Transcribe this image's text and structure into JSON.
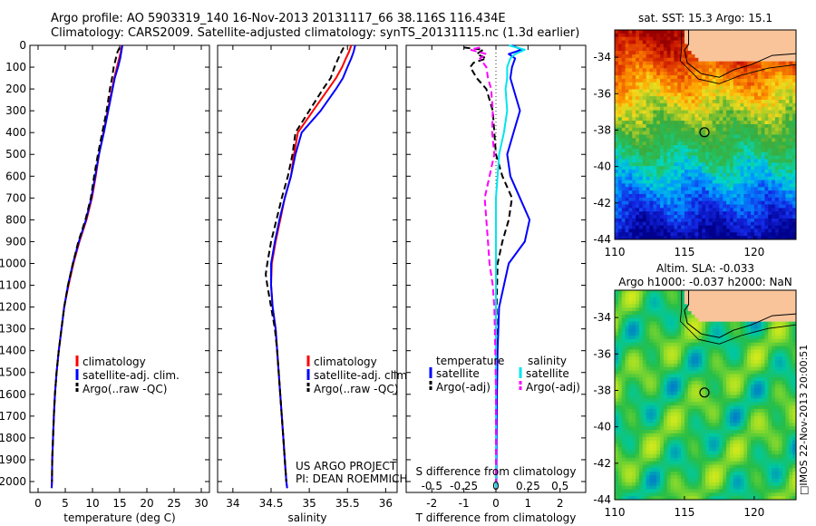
{
  "header": {
    "line1": "Argo profile: AO 5903319_140 16-Nov-2013 20131117_66 38.116S 116.434E",
    "line2": "Climatology: CARS2009. Satellite-adjusted climatology: synTS_20131115.nc (1.3d earlier)"
  },
  "credit": "□IMOS 22-Nov-2013 20:00:51",
  "colors": {
    "climatology": "#ff0000",
    "satellite": "#0000ff",
    "argo": "#000000",
    "salinity_sat": "#00e5ee",
    "salinity_argo": "#ff00ff",
    "land": "#f9c49a",
    "coast": "#000000"
  },
  "chart_data": [
    {
      "type": "line",
      "xlabel": "temperature (deg C)",
      "ylabel": "",
      "xlim": [
        -1.5,
        31.5
      ],
      "ylim": [
        2050,
        0
      ],
      "xticks": [
        0,
        5,
        10,
        15,
        20,
        25,
        30
      ],
      "yticks": [
        0,
        100,
        200,
        300,
        400,
        500,
        600,
        700,
        800,
        900,
        1000,
        1100,
        1200,
        1300,
        1400,
        1500,
        1600,
        1700,
        1800,
        1900,
        2000
      ],
      "legend": [
        "climatology",
        "satellite-adj. clim.",
        "Argo(..raw -QC)"
      ],
      "series": [
        {
          "name": "climatology",
          "style": "solid",
          "depth": [
            0,
            30,
            60,
            100,
            150,
            200,
            300,
            400,
            500,
            600,
            700,
            800,
            900,
            1000,
            1100,
            1200,
            1300,
            1400,
            1500,
            1600,
            1700,
            1800,
            1900,
            2000,
            2030
          ],
          "values": [
            15.4,
            15.2,
            14.9,
            14.5,
            14.0,
            13.6,
            12.8,
            12.0,
            11.2,
            10.6,
            9.9,
            8.9,
            7.6,
            6.5,
            5.6,
            4.8,
            4.3,
            3.8,
            3.4,
            3.1,
            2.9,
            2.75,
            2.6,
            2.55,
            2.5
          ]
        },
        {
          "name": "satellite-adj. clim.",
          "style": "solid",
          "depth": [
            0,
            30,
            60,
            100,
            150,
            200,
            300,
            400,
            500,
            600,
            700,
            800,
            900,
            1000,
            1100,
            1200,
            1300,
            1400,
            1500,
            1600,
            1700,
            1800,
            1900,
            2000,
            2030
          ],
          "values": [
            15.5,
            15.3,
            15.1,
            14.7,
            14.1,
            13.7,
            12.9,
            12.1,
            11.2,
            10.5,
            9.8,
            8.8,
            7.5,
            6.4,
            5.5,
            4.8,
            4.3,
            3.8,
            3.4,
            3.1,
            2.9,
            2.75,
            2.6,
            2.55,
            2.5
          ]
        },
        {
          "name": "Argo(..raw -QC)",
          "style": "dashed",
          "depth": [
            10,
            30,
            60,
            100,
            150,
            200,
            300,
            400,
            500,
            600,
            700,
            800,
            900,
            1000,
            1100,
            1200,
            1300,
            1400,
            1500,
            1600,
            1700,
            1800,
            1900,
            2000
          ],
          "values": [
            15.0,
            14.6,
            14.3,
            13.9,
            13.6,
            13.2,
            12.6,
            11.8,
            11.0,
            10.3,
            9.7,
            8.7,
            7.4,
            6.4,
            5.5,
            4.8,
            4.3,
            3.8,
            3.4,
            3.1,
            2.9,
            2.75,
            2.6,
            2.55
          ]
        }
      ]
    },
    {
      "type": "line",
      "xlabel": "salinity",
      "ylabel": "",
      "xlim": [
        33.8,
        36.15
      ],
      "ylim": [
        2050,
        0
      ],
      "xticks": [
        34,
        34.5,
        35,
        35.5,
        36
      ],
      "legend": [
        "climatology",
        "satellite-adj. clim.",
        "Argo(..raw -QC)"
      ],
      "annotation": [
        "US ARGO PROJECT",
        "PI: DEAN ROEMMICH"
      ],
      "series": [
        {
          "name": "climatology",
          "style": "solid",
          "depth": [
            0,
            30,
            60,
            100,
            150,
            200,
            300,
            400,
            500,
            600,
            700,
            800,
            900,
            1000,
            1100,
            1200,
            1300,
            1400,
            1500,
            1600,
            1700,
            1800,
            1900,
            2000,
            2030
          ],
          "values": [
            35.55,
            35.52,
            35.48,
            35.43,
            35.35,
            35.25,
            35.05,
            34.85,
            34.8,
            34.76,
            34.68,
            34.62,
            34.56,
            34.51,
            34.5,
            34.52,
            34.56,
            34.58,
            34.6,
            34.62,
            34.64,
            34.66,
            34.68,
            34.7,
            34.71
          ]
        },
        {
          "name": "satellite-adj. clim.",
          "style": "solid",
          "depth": [
            0,
            30,
            60,
            100,
            150,
            200,
            300,
            400,
            500,
            600,
            700,
            800,
            900,
            1000,
            1100,
            1200,
            1300,
            1400,
            1500,
            1600,
            1700,
            1800,
            1900,
            2000,
            2030
          ],
          "values": [
            35.6,
            35.58,
            35.55,
            35.5,
            35.44,
            35.35,
            35.15,
            34.9,
            34.82,
            34.76,
            34.68,
            34.61,
            34.55,
            34.5,
            34.5,
            34.52,
            34.56,
            34.58,
            34.6,
            34.62,
            34.64,
            34.66,
            34.68,
            34.7,
            34.71
          ]
        },
        {
          "name": "Argo(..raw -QC)",
          "style": "dashed",
          "depth": [
            10,
            30,
            60,
            100,
            150,
            200,
            300,
            400,
            500,
            600,
            700,
            800,
            900,
            1000,
            1050,
            1100,
            1200,
            1300,
            1400,
            1500,
            1600,
            1700,
            1800,
            1900,
            2000
          ],
          "values": [
            35.45,
            35.42,
            35.38,
            35.33,
            35.28,
            35.18,
            35.0,
            34.82,
            34.78,
            34.72,
            34.64,
            34.57,
            34.5,
            34.45,
            34.43,
            34.45,
            34.5,
            34.55,
            34.58,
            34.6,
            34.62,
            34.64,
            34.66,
            34.68,
            34.7
          ]
        }
      ]
    },
    {
      "type": "line",
      "xlabel": "T difference from climatology",
      "xlabel_top": "S difference from climatology",
      "xlim": [
        -2.8,
        2.8
      ],
      "ylim": [
        2050,
        0
      ],
      "xticks": [
        -2,
        -1,
        0,
        1,
        2
      ],
      "xtick_labels": [
        "-2",
        "-1",
        "0",
        "1",
        "2"
      ],
      "xticks_S": [
        -2,
        -1,
        0,
        1,
        2
      ],
      "xtick_labels_S": [
        "-0.5",
        "-0.25",
        "0",
        "0.25",
        "0.5"
      ],
      "legend_headers": [
        "temperature",
        "salinity"
      ],
      "legend": [
        "satellite",
        "Argo(-adj)",
        "satellite",
        "Argo(-adj)"
      ],
      "series": [
        {
          "name": "satellite",
          "group": "temperature",
          "style": "solid",
          "depth": [
            0,
            20,
            40,
            60,
            80,
            100,
            150,
            200,
            300,
            400,
            500,
            600,
            700,
            800,
            900,
            1000,
            1200,
            1400,
            1600,
            1800,
            2000,
            2030
          ],
          "values": [
            0.5,
            0.8,
            0.4,
            0.6,
            0.55,
            0.5,
            0.45,
            0.55,
            0.75,
            0.55,
            0.35,
            0.45,
            0.75,
            1.05,
            0.9,
            0.4,
            0.1,
            0.05,
            0.03,
            0.02,
            0.01,
            0.0
          ]
        },
        {
          "name": "Argo(-adj)",
          "group": "temperature",
          "style": "dashed",
          "depth": [
            10,
            20,
            40,
            60,
            80,
            100,
            150,
            200,
            300,
            400,
            500,
            600,
            700,
            800,
            900,
            1000,
            1200,
            1400,
            1600,
            1800,
            2000
          ],
          "values": [
            -1.0,
            -0.4,
            -0.6,
            -0.3,
            -0.7,
            -0.8,
            -0.6,
            -0.3,
            -0.1,
            -0.05,
            0.0,
            0.2,
            0.5,
            0.4,
            0.2,
            0.05,
            0.02,
            0.01,
            0.0,
            0.0,
            0.0
          ]
        },
        {
          "name": "satellite",
          "group": "salinity",
          "style": "solid",
          "depth": [
            0,
            20,
            40,
            60,
            80,
            100,
            150,
            200,
            300,
            400,
            500,
            600,
            700,
            800,
            900,
            1000,
            1200,
            1400,
            1600,
            1800,
            2000,
            2030
          ],
          "values": [
            0.4,
            0.9,
            0.6,
            0.45,
            0.4,
            0.35,
            0.35,
            0.3,
            0.35,
            0.25,
            0.1,
            0.05,
            0.0,
            0.0,
            0.0,
            0.0,
            0.0,
            0.0,
            0.0,
            0.0,
            0.0,
            0.0
          ]
        },
        {
          "name": "Argo(-adj)",
          "group": "salinity",
          "style": "dashed",
          "depth": [
            10,
            20,
            40,
            60,
            80,
            100,
            150,
            200,
            300,
            400,
            500,
            600,
            700,
            800,
            900,
            1000,
            1100,
            1200,
            1400,
            1600,
            1800,
            2000
          ],
          "values": [
            -0.5,
            -0.8,
            -0.3,
            -0.5,
            -0.4,
            -0.3,
            -0.25,
            -0.15,
            -0.1,
            -0.12,
            -0.05,
            -0.2,
            -0.35,
            -0.3,
            -0.25,
            -0.2,
            -0.1,
            -0.05,
            -0.02,
            0.0,
            0.0,
            0.0
          ]
        }
      ]
    },
    {
      "type": "heatmap",
      "title": "sat. SST: 15.3 Argo: 15.1",
      "xlim": [
        110,
        123
      ],
      "ylim": [
        -44,
        -32.5
      ],
      "xticks": [
        110,
        115,
        120
      ],
      "yticks": [
        -34,
        -36,
        -38,
        -40,
        -42,
        -44
      ],
      "marker": {
        "lon": 116.434,
        "lat": -38.116
      }
    },
    {
      "type": "heatmap",
      "title": "Altim. SLA: -0.033",
      "subtitle": "Argo h1000: -0.037 h2000: NaN",
      "xlim": [
        110,
        123
      ],
      "ylim": [
        -44,
        -32.5
      ],
      "xticks": [
        110,
        115,
        120
      ],
      "yticks": [
        -34,
        -36,
        -38,
        -40,
        -42,
        -44
      ],
      "marker": {
        "lon": 116.434,
        "lat": -38.116
      }
    }
  ]
}
